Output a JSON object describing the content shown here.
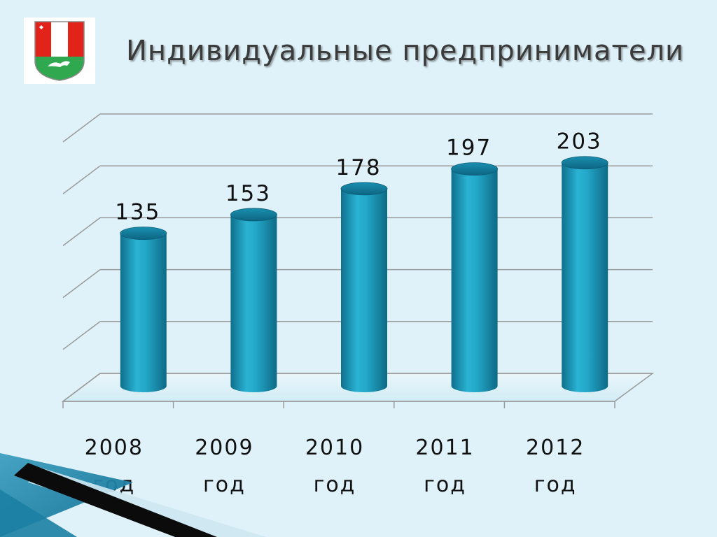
{
  "slide": {
    "title": "Индивидуальные предприниматели",
    "logo_icon": "coat-of-arms-icon"
  },
  "colors": {
    "background": "#dff2f9",
    "bar": "#1e9fc0",
    "bar_dark": "#0f6f8c",
    "gridline": "#9a9a9a",
    "title_text": "#3b3b3b"
  },
  "chart_data": {
    "type": "bar",
    "style": "3d-cylinder",
    "categories": [
      "2008",
      "2009",
      "2010",
      "2011",
      "2012"
    ],
    "category_suffix": "год",
    "values": [
      135,
      153,
      178,
      197,
      203
    ],
    "data_labels": [
      "135",
      "153",
      "178",
      "197",
      "203"
    ],
    "title": "Индивидуальные предприниматели",
    "xlabel": "",
    "ylabel": "",
    "ylim": [
      0,
      250
    ],
    "y_tick_count": 6,
    "y_tick_labels_visible": false,
    "grid": true,
    "legend": "none"
  }
}
